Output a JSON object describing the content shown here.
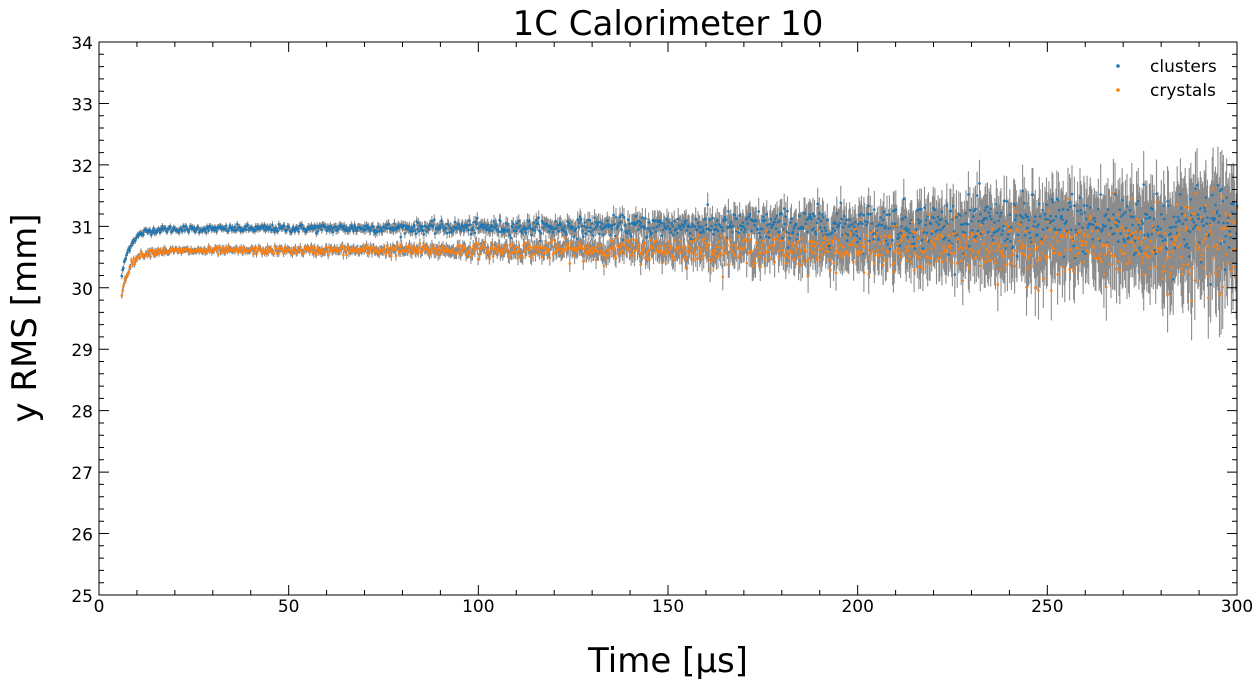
{
  "chart_data": {
    "type": "scatter",
    "title": "1C Calorimeter 10",
    "xlabel": "Time [µs]",
    "ylabel": "y RMS [mm]",
    "xlim": [
      0,
      300
    ],
    "ylim": [
      25,
      34
    ],
    "x_ticks": [
      0,
      50,
      100,
      150,
      200,
      250,
      300
    ],
    "y_ticks": [
      25,
      26,
      27,
      28,
      29,
      30,
      31,
      32,
      33,
      34
    ],
    "grid": false,
    "legend_position": "top-right",
    "error_bar_color": "#8c8c8c",
    "series": [
      {
        "name": "clusters",
        "color": "#1f77b4",
        "x_range": [
          6,
          300
        ],
        "start_value": 30.2,
        "plateau_value": 30.95,
        "late_value": 31.05,
        "error_at_start": 0.05,
        "error_at_end": 0.65
      },
      {
        "name": "crystals",
        "color": "#ff7f0e",
        "x_range": [
          6,
          300
        ],
        "start_value": 29.9,
        "plateau_value": 30.6,
        "late_value": 30.65,
        "error_at_start": 0.05,
        "error_at_end": 0.7
      }
    ]
  }
}
